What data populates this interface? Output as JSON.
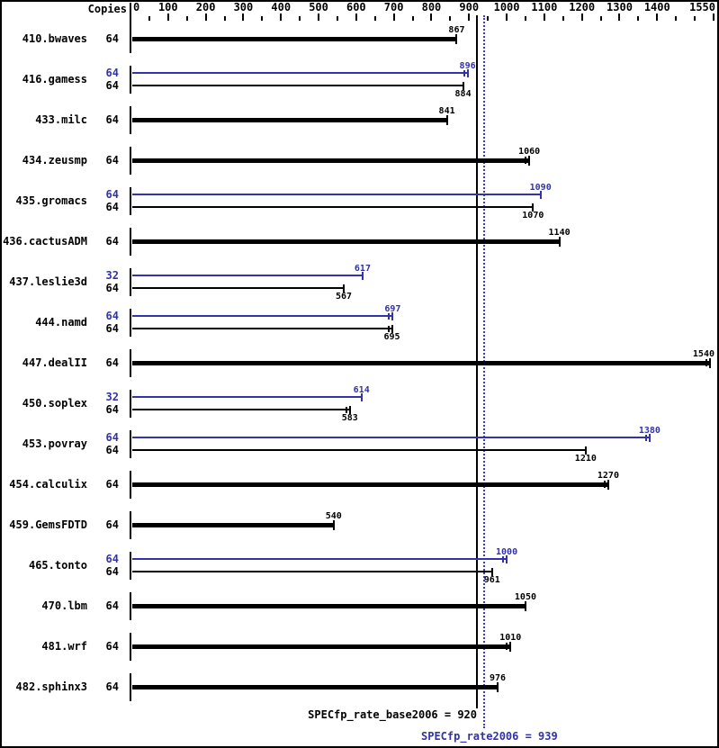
{
  "colors": {
    "background": "#ffffff",
    "bar_base": "#000000",
    "accent_blue": "#3232aa",
    "dotted_line_blue": "#3c3cc8"
  },
  "header": {
    "copies_label": "Copies"
  },
  "summary": {
    "base_text": "SPECfp_rate_base2006 = 920",
    "peak_text": "SPECfp_rate2006 = 939"
  },
  "chart_data": {
    "type": "bar",
    "orientation": "horizontal",
    "grid": false,
    "legend": "none",
    "x_axis": {
      "min": 0,
      "max": 1550,
      "minor_tick_step": 50,
      "tick_labels": [
        "0",
        "100",
        "200",
        "300",
        "400",
        "500",
        "600",
        "700",
        "800",
        "900",
        "1000",
        "1100",
        "1200",
        "1300",
        "1400",
        "1550"
      ]
    },
    "categories": [
      "410.bwaves",
      "416.gamess",
      "433.milc",
      "434.zeusmp",
      "435.gromacs",
      "436.cactusADM",
      "437.leslie3d",
      "444.namd",
      "447.dealII",
      "450.soplex",
      "453.povray",
      "454.calculix",
      "459.GemsFDTD",
      "465.tonto",
      "470.lbm",
      "481.wrf",
      "482.sphinx3"
    ],
    "series": [
      {
        "name": "peak (SPECfp_rate2006)",
        "color": "#3232aa",
        "copies": [
          null,
          64,
          null,
          null,
          64,
          null,
          32,
          64,
          null,
          32,
          64,
          null,
          null,
          64,
          null,
          null,
          null
        ],
        "values": [
          null,
          896,
          null,
          null,
          1090,
          null,
          617,
          697,
          null,
          614,
          1380,
          null,
          null,
          1000,
          null,
          null,
          null
        ]
      },
      {
        "name": "base (SPECfp_rate_base2006)",
        "color": "#000000",
        "copies": [
          64,
          64,
          64,
          64,
          64,
          64,
          64,
          64,
          64,
          64,
          64,
          64,
          64,
          64,
          64,
          64,
          64
        ],
        "values": [
          867,
          884,
          841,
          1060,
          1070,
          1140,
          567,
          695,
          1540,
          583,
          1210,
          1270,
          540,
          961,
          1050,
          1010,
          976
        ]
      }
    ],
    "reference_lines": [
      {
        "name": "SPECfp_rate_base2006",
        "value": 920,
        "style": "solid",
        "color": "#000000"
      },
      {
        "name": "SPECfp_rate2006",
        "value": 939,
        "style": "dotted",
        "color": "#3c3cc8"
      }
    ]
  },
  "render_hints": {
    "peak_run_marks": [
      false,
      true,
      false,
      false,
      false,
      false,
      false,
      true,
      false,
      false,
      true,
      false,
      false,
      true,
      false,
      false,
      false
    ],
    "base_run_marks": [
      false,
      false,
      false,
      true,
      false,
      false,
      false,
      true,
      true,
      true,
      false,
      true,
      false,
      false,
      false,
      true,
      false
    ]
  }
}
